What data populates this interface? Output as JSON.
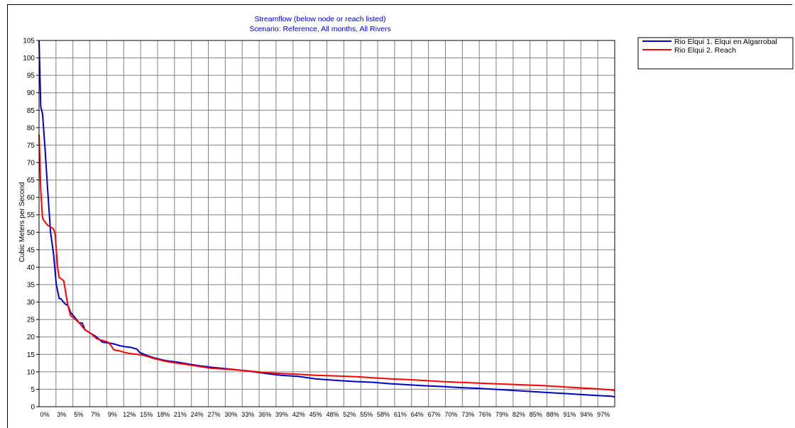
{
  "chart_data": {
    "type": "line",
    "title": "Streamflow  (below  node or reach listed)",
    "subtitle": "Scenario: Reference,  All months,  All Rivers",
    "ylabel": "Cubic Meters per Second",
    "xlabel": "",
    "ylim": [
      0,
      105
    ],
    "xlim": [
      0,
      100
    ],
    "grid": true,
    "legend_position": "top-right",
    "y_ticks": [
      0,
      5,
      10,
      15,
      20,
      25,
      30,
      35,
      40,
      45,
      50,
      55,
      60,
      65,
      70,
      75,
      80,
      85,
      90,
      95,
      100,
      105
    ],
    "x_tick_labels": [
      "0%",
      "3%",
      "5%",
      "7%",
      "9%",
      "12%",
      "15%",
      "18%",
      "21%",
      "24%",
      "27%",
      "30%",
      "33%",
      "36%",
      "39%",
      "42%",
      "45%",
      "48%",
      "52%",
      "55%",
      "58%",
      "61%",
      "64%",
      "67%",
      "70%",
      "73%",
      "76%",
      "79%",
      "82%",
      "85%",
      "88%",
      "91%",
      "94%",
      "97%"
    ],
    "series": [
      {
        "name": "Rio Elqui  1. Elqui en Algarrobal",
        "color": "#0000cc",
        "x": [
          0,
          0.3,
          0.6,
          1.0,
          1.5,
          2.0,
          2.5,
          3.0,
          3.5,
          3.8,
          4.0,
          4.5,
          5.0,
          5.5,
          6.0,
          7.0,
          7.5,
          8.0,
          8.5,
          9.0,
          10.0,
          11.0,
          12.0,
          13.0,
          14.0,
          15.0,
          16.0,
          17.0,
          17.5,
          18.0,
          19.0,
          20.0,
          22.0,
          24.0,
          26.0,
          28.0,
          30.0,
          33.0,
          36.0,
          39.0,
          42.0,
          45.0,
          48.0,
          52.0,
          55.0,
          58.0,
          61.0,
          64.0,
          67.0,
          70.0,
          73.0,
          76.0,
          79.0,
          82.0,
          85.0,
          88.0,
          91.0,
          94.0,
          97.0,
          99.5,
          100
        ],
        "values": [
          105,
          86,
          84,
          75,
          62,
          50,
          44,
          35,
          31,
          31,
          30.5,
          29.5,
          29,
          27,
          26,
          24,
          24,
          22,
          21.5,
          21,
          20,
          18.5,
          18.3,
          18,
          17.5,
          17.2,
          17,
          16.5,
          15.5,
          15.2,
          14.5,
          14,
          13.2,
          12.8,
          12.2,
          11.7,
          11.3,
          10.8,
          10.3,
          9.6,
          9.0,
          8.7,
          8.0,
          7.5,
          7.2,
          7.0,
          6.6,
          6.3,
          6.0,
          5.8,
          5.5,
          5.3,
          5.0,
          4.7,
          4.4,
          4.1,
          3.8,
          3.5,
          3.2,
          3.0,
          2.8
        ]
      },
      {
        "name": "Rio Elqui  2. Reach",
        "color": "#ff0000",
        "x": [
          0,
          0.3,
          0.6,
          1.0,
          1.5,
          2.0,
          2.5,
          2.8,
          3.0,
          3.2,
          3.5,
          4.0,
          4.3,
          4.7,
          5.0,
          5.5,
          6.0,
          7.0,
          7.5,
          8.0,
          8.5,
          9.0,
          10.0,
          11.0,
          12.0,
          12.5,
          13.0,
          14.0,
          15.0,
          16.0,
          17.0,
          18.0,
          19.0,
          20.0,
          22.0,
          24.0,
          26.0,
          28.0,
          30.0,
          33.0,
          36.0,
          39.0,
          42.0,
          45.0,
          48.0,
          52.0,
          55.0,
          58.0,
          61.0,
          64.0,
          67.0,
          70.0,
          73.0,
          76.0,
          79.0,
          82.0,
          85.0,
          88.0,
          91.0,
          94.0,
          97.0,
          99.5,
          100
        ],
        "values": [
          78,
          62,
          54,
          53,
          52,
          51.5,
          51,
          49.5,
          45,
          40,
          37,
          36.5,
          36,
          32,
          29,
          26,
          25.5,
          24,
          23,
          22,
          21.5,
          21,
          19.5,
          19,
          18.5,
          17.5,
          16.3,
          16,
          15.5,
          15.2,
          15.0,
          14.8,
          14.3,
          13.8,
          13.0,
          12.5,
          12.0,
          11.5,
          11.0,
          10.7,
          10.3,
          9.8,
          9.5,
          9.3,
          9.0,
          8.8,
          8.6,
          8.3,
          8.0,
          7.8,
          7.5,
          7.2,
          7.0,
          6.8,
          6.6,
          6.4,
          6.2,
          6.0,
          5.7,
          5.4,
          5.1,
          4.8,
          4.6
        ]
      }
    ]
  }
}
